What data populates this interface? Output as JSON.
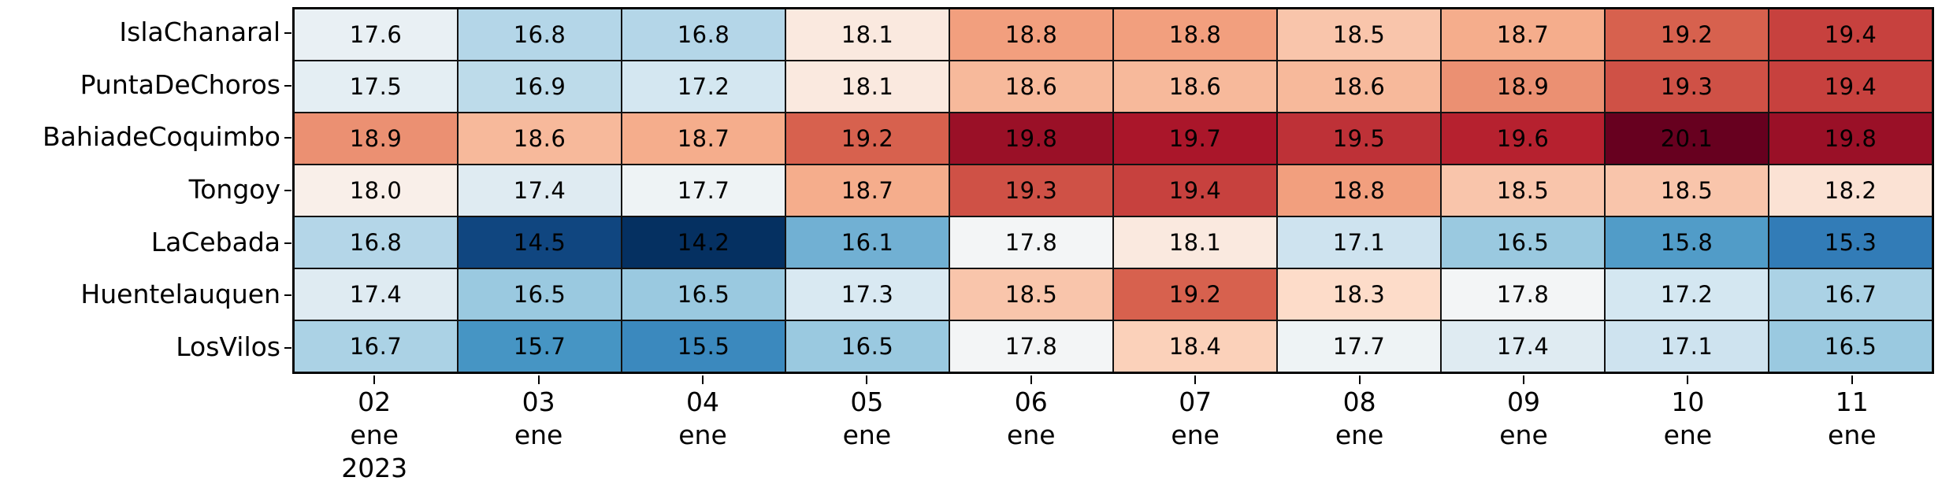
{
  "chart_data": {
    "type": "heatmap",
    "title": "",
    "xlabel": "",
    "ylabel": "",
    "grid": false,
    "legend": "none",
    "rows": [
      "IslaChanaral",
      "PuntaDeChoros",
      "BahiadeCoquimbo",
      "Tongoy",
      "LaCebada",
      "Huentelauquen",
      "LosVilos"
    ],
    "columns": [
      {
        "day": "02",
        "month": "ene",
        "year": "2023"
      },
      {
        "day": "03",
        "month": "ene",
        "year": ""
      },
      {
        "day": "04",
        "month": "ene",
        "year": ""
      },
      {
        "day": "05",
        "month": "ene",
        "year": ""
      },
      {
        "day": "06",
        "month": "ene",
        "year": ""
      },
      {
        "day": "07",
        "month": "ene",
        "year": ""
      },
      {
        "day": "08",
        "month": "ene",
        "year": ""
      },
      {
        "day": "09",
        "month": "ene",
        "year": ""
      },
      {
        "day": "10",
        "month": "ene",
        "year": ""
      },
      {
        "day": "11",
        "month": "ene",
        "year": ""
      }
    ],
    "values": [
      [
        17.6,
        16.8,
        16.8,
        18.1,
        18.8,
        18.8,
        18.5,
        18.7,
        19.2,
        19.4
      ],
      [
        17.5,
        16.9,
        17.2,
        18.1,
        18.6,
        18.6,
        18.6,
        18.9,
        19.3,
        19.4
      ],
      [
        18.9,
        18.6,
        18.7,
        19.2,
        19.8,
        19.7,
        19.5,
        19.6,
        20.1,
        19.8
      ],
      [
        18.0,
        17.4,
        17.7,
        18.7,
        19.3,
        19.4,
        18.8,
        18.5,
        18.5,
        18.2
      ],
      [
        16.8,
        14.5,
        14.2,
        16.1,
        17.8,
        18.1,
        17.1,
        16.5,
        15.8,
        15.3
      ],
      [
        17.4,
        16.5,
        16.5,
        17.3,
        18.5,
        19.2,
        18.3,
        17.8,
        17.2,
        16.7
      ],
      [
        16.7,
        15.7,
        15.5,
        16.5,
        17.8,
        18.4,
        17.7,
        17.4,
        17.1,
        16.5
      ]
    ],
    "value_format": "one_decimal",
    "colormap": "RdBu_r",
    "colormap_anchors": [
      "#053061",
      "#2166ac",
      "#4393c3",
      "#92c5de",
      "#d1e5f0",
      "#f7f7f7",
      "#fddbc7",
      "#f4a582",
      "#d6604d",
      "#b2182b",
      "#67001f"
    ],
    "vmin": 14.2,
    "vcenter": 17.873,
    "vmax": 20.1,
    "cell_text_color": "#000000",
    "grid_line_color": "#111111"
  }
}
